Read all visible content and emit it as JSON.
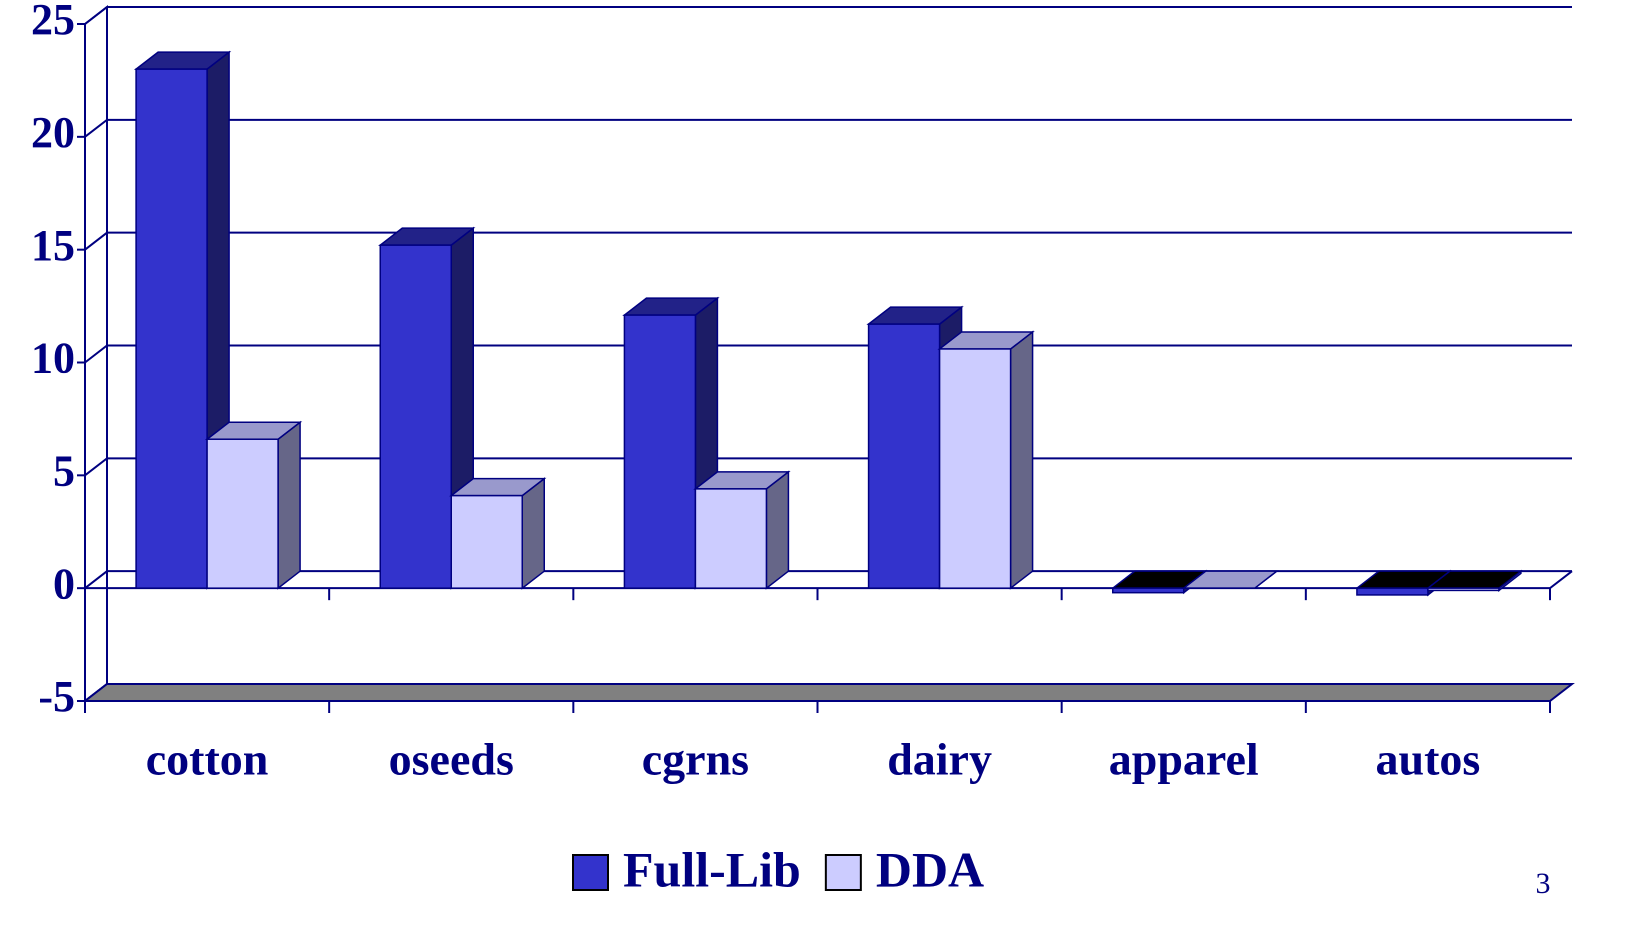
{
  "chart_data": {
    "type": "bar3d",
    "categories": [
      "cotton",
      "oseeds",
      "cgrns",
      "dairy",
      "apparel",
      "autos"
    ],
    "series": [
      {
        "name": "Full-Lib",
        "color": "#3333cc",
        "top": "#222288",
        "side": "#1c1c66",
        "values": [
          23,
          15.2,
          12.1,
          11.7,
          -0.2,
          -0.3
        ]
      },
      {
        "name": "DDA",
        "color": "#ccccff",
        "top": "#9999cc",
        "side": "#666688",
        "values": [
          6.6,
          4.1,
          4.4,
          10.6,
          0,
          -0.1
        ]
      }
    ],
    "ylim": [
      -5,
      25
    ],
    "yticks": [
      -5,
      0,
      5,
      10,
      15,
      20,
      25
    ],
    "grid": true,
    "legend": "bottom"
  },
  "page_number": "3"
}
